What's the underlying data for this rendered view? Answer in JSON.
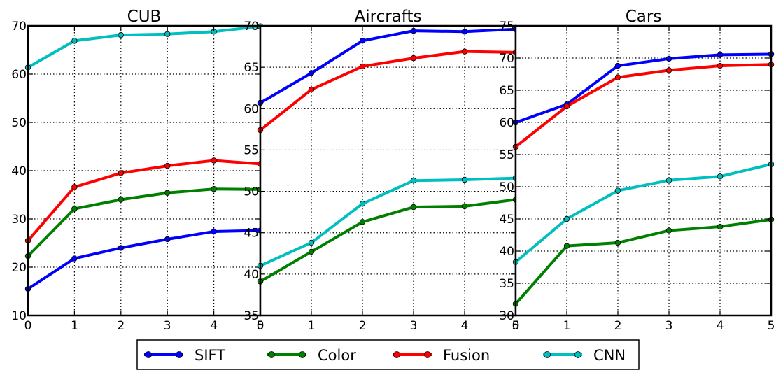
{
  "chart_data": [
    {
      "type": "line",
      "title": "CUB",
      "xlabel": "",
      "ylabel": "",
      "x": [
        0,
        1,
        2,
        3,
        4,
        5
      ],
      "xlim": [
        0,
        5
      ],
      "ylim": [
        10,
        70
      ],
      "xticks": [
        "0",
        "1",
        "2",
        "3",
        "4",
        "5"
      ],
      "yticks": [
        "10",
        "20",
        "30",
        "40",
        "50",
        "60",
        "70"
      ],
      "grid": true,
      "series": [
        {
          "name": "SIFT",
          "color": "#0000ff",
          "values": [
            15.5,
            21.8,
            24.0,
            25.8,
            27.4,
            27.6
          ]
        },
        {
          "name": "Color",
          "color": "#008000",
          "values": [
            22.3,
            32.1,
            34.0,
            35.4,
            36.2,
            36.1
          ]
        },
        {
          "name": "Fusion",
          "color": "#ff0000",
          "values": [
            25.5,
            36.6,
            39.5,
            41.0,
            42.1,
            41.4
          ]
        },
        {
          "name": "CNN",
          "color": "#00bfbf",
          "values": [
            61.4,
            66.9,
            68.1,
            68.3,
            68.8,
            69.9
          ]
        }
      ]
    },
    {
      "type": "line",
      "title": "Aircrafts",
      "xlabel": "",
      "ylabel": "",
      "x": [
        0,
        1,
        2,
        3,
        4,
        5
      ],
      "xlim": [
        0,
        5
      ],
      "ylim": [
        35,
        70
      ],
      "xticks": [
        "0",
        "1",
        "2",
        "3",
        "4",
        "5"
      ],
      "yticks": [
        "35",
        "40",
        "45",
        "50",
        "55",
        "60",
        "65",
        "70"
      ],
      "grid": true,
      "series": [
        {
          "name": "SIFT",
          "color": "#0000ff",
          "values": [
            60.7,
            64.3,
            68.2,
            69.4,
            69.3,
            69.6
          ]
        },
        {
          "name": "Color",
          "color": "#008000",
          "values": [
            39.1,
            42.7,
            46.3,
            48.1,
            48.2,
            49.0
          ]
        },
        {
          "name": "Fusion",
          "color": "#ff0000",
          "values": [
            57.4,
            62.3,
            65.1,
            66.1,
            66.9,
            66.8
          ]
        },
        {
          "name": "CNN",
          "color": "#00bfbf",
          "values": [
            41.0,
            43.8,
            48.5,
            51.3,
            51.4,
            51.6
          ]
        }
      ]
    },
    {
      "type": "line",
      "title": "Cars",
      "xlabel": "",
      "ylabel": "",
      "x": [
        0,
        1,
        2,
        3,
        4,
        5
      ],
      "xlim": [
        0,
        5
      ],
      "ylim": [
        30,
        75
      ],
      "xticks": [
        "0",
        "1",
        "2",
        "3",
        "4",
        "5"
      ],
      "yticks": [
        "30",
        "35",
        "40",
        "45",
        "50",
        "55",
        "60",
        "65",
        "70",
        "75"
      ],
      "grid": true,
      "series": [
        {
          "name": "SIFT",
          "color": "#0000ff",
          "values": [
            60.0,
            62.8,
            68.8,
            69.9,
            70.5,
            70.6
          ]
        },
        {
          "name": "Color",
          "color": "#008000",
          "values": [
            31.8,
            40.8,
            41.3,
            43.2,
            43.8,
            44.9
          ]
        },
        {
          "name": "Fusion",
          "color": "#ff0000",
          "values": [
            56.2,
            62.5,
            67.0,
            68.1,
            68.8,
            69.0
          ]
        },
        {
          "name": "CNN",
          "color": "#00bfbf",
          "values": [
            38.3,
            45.0,
            49.4,
            51.0,
            51.6,
            53.5
          ]
        }
      ]
    }
  ],
  "legend": {
    "placement": "bottom",
    "entries": [
      {
        "name": "SIFT",
        "color": "#0000ff"
      },
      {
        "name": "Color",
        "color": "#008000"
      },
      {
        "name": "Fusion",
        "color": "#ff0000"
      },
      {
        "name": "CNN",
        "color": "#00bfbf"
      }
    ]
  }
}
